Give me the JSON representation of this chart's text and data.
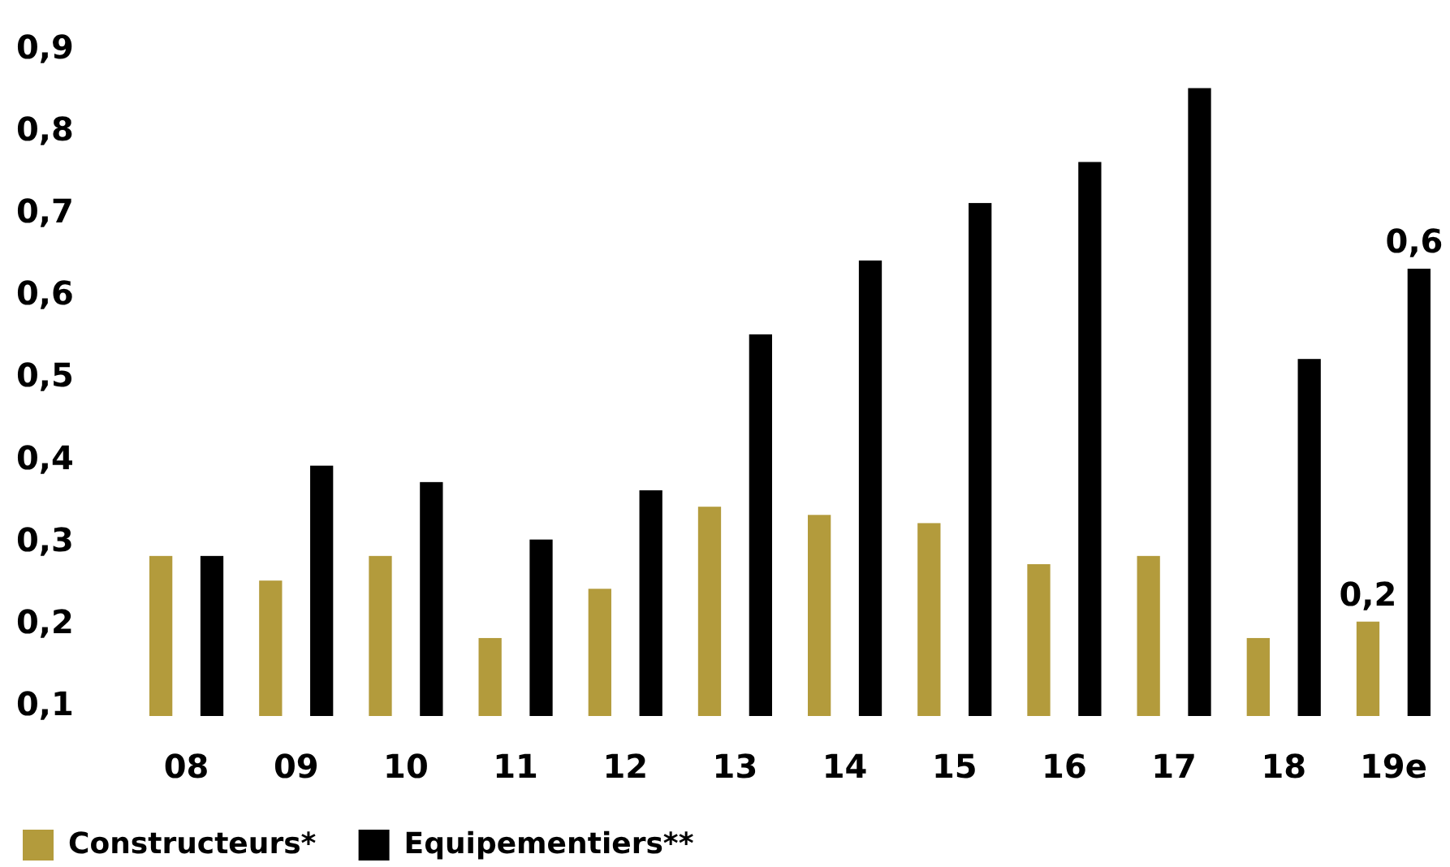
{
  "chart_data": {
    "type": "bar",
    "categories": [
      "08",
      "09",
      "10",
      "11",
      "12",
      "13",
      "14",
      "15",
      "16",
      "17",
      "18",
      "19e"
    ],
    "series": [
      {
        "name": "Constructeurs*",
        "color": "#b39b3c",
        "values": [
          0.28,
          0.25,
          0.28,
          0.18,
          0.24,
          0.34,
          0.33,
          0.32,
          0.27,
          0.28,
          0.18,
          0.2
        ],
        "value_labels": [
          null,
          null,
          null,
          null,
          null,
          null,
          null,
          null,
          null,
          null,
          null,
          "0,2"
        ]
      },
      {
        "name": "Equipementiers**",
        "color": "#000000",
        "values": [
          0.28,
          0.39,
          0.37,
          0.3,
          0.36,
          0.55,
          0.64,
          0.71,
          0.76,
          0.85,
          0.52,
          0.63
        ],
        "value_labels": [
          null,
          null,
          null,
          null,
          null,
          null,
          null,
          null,
          null,
          null,
          null,
          "0,6"
        ]
      }
    ],
    "ylim": [
      0.085,
      0.9
    ],
    "yticks": [
      {
        "value": 0.1,
        "label": "0,1"
      },
      {
        "value": 0.2,
        "label": "0,2"
      },
      {
        "value": 0.3,
        "label": "0,3"
      },
      {
        "value": 0.4,
        "label": "0,4"
      },
      {
        "value": 0.5,
        "label": "0,5"
      },
      {
        "value": 0.6,
        "label": "0,6"
      },
      {
        "value": 0.7,
        "label": "0,7"
      },
      {
        "value": 0.8,
        "label": "0,8"
      },
      {
        "value": 0.9,
        "label": "0,9"
      }
    ],
    "grid": false,
    "legend": "bottom left"
  }
}
